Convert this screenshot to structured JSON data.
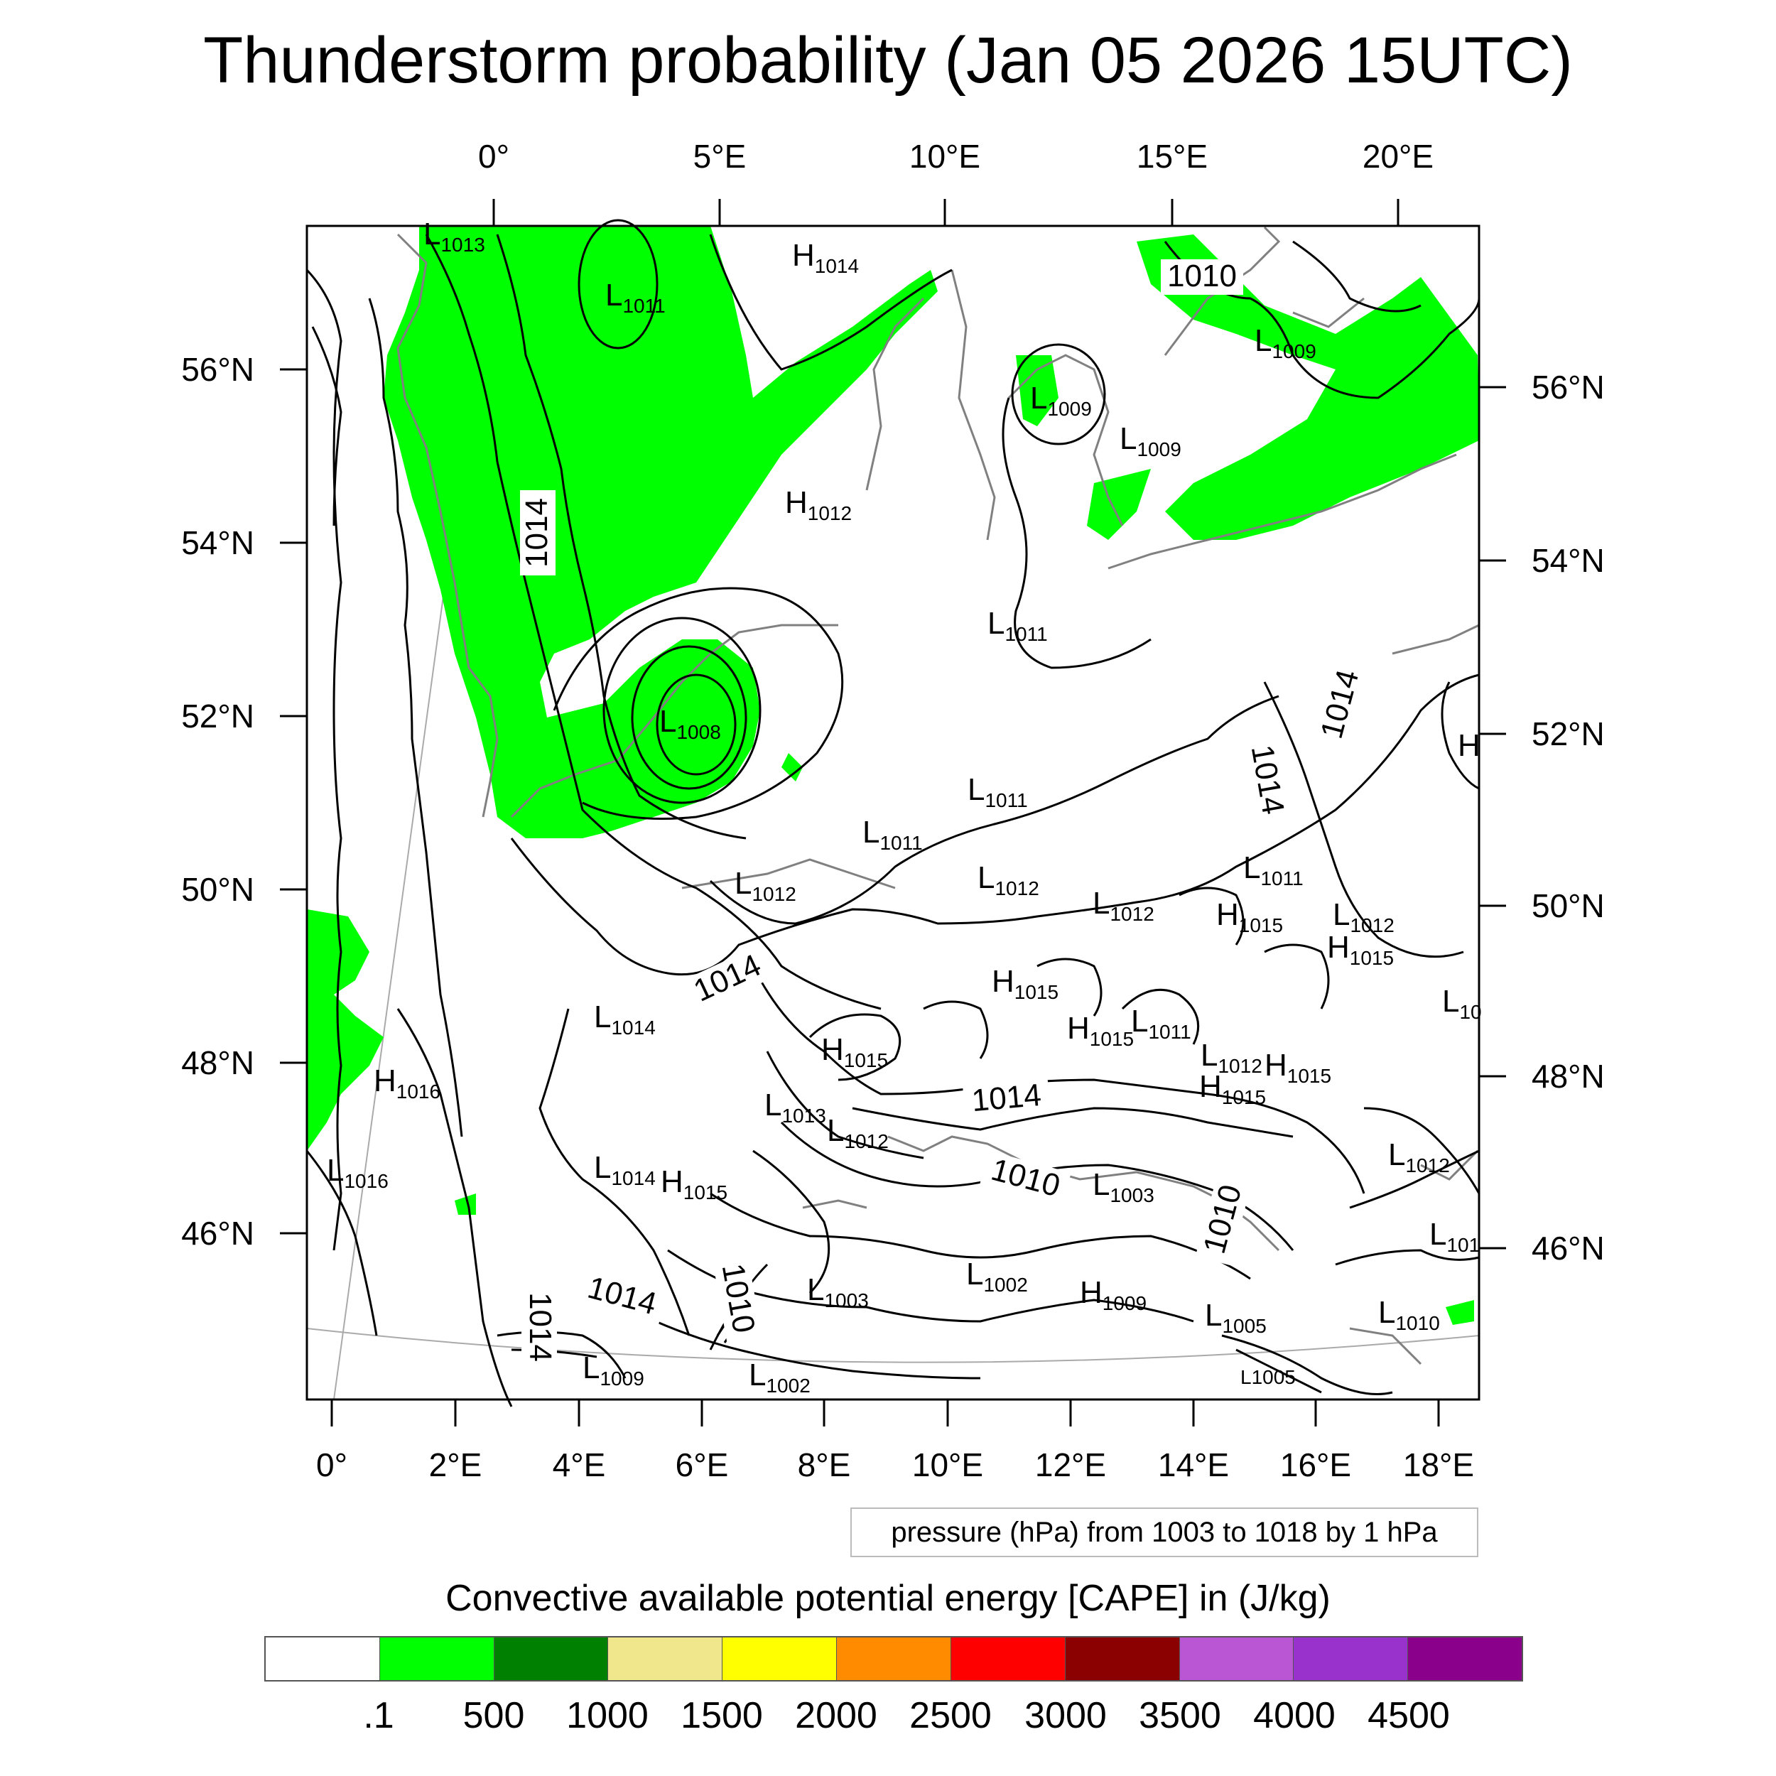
{
  "title": "Thunderstorm probability (Jan 05 2026 15UTC)",
  "axes": {
    "top_lon_ticks": [
      "0°",
      "5°E",
      "10°E",
      "15°E",
      "20°E"
    ],
    "bottom_lon_ticks": [
      "0°",
      "2°E",
      "4°E",
      "6°E",
      "8°E",
      "10°E",
      "12°E",
      "14°E",
      "16°E",
      "18°E"
    ],
    "left_lat_ticks": [
      "56°N",
      "54°N",
      "52°N",
      "50°N",
      "48°N",
      "46°N"
    ],
    "right_lat_ticks": [
      "56°N",
      "54°N",
      "52°N",
      "50°N",
      "48°N",
      "46°N"
    ]
  },
  "pressure_centers": [
    {
      "type": "L",
      "value": "1013"
    },
    {
      "type": "L",
      "value": "1011"
    },
    {
      "type": "H",
      "value": "1014"
    },
    {
      "type": "L",
      "value": "1009"
    },
    {
      "type": "L",
      "value": "1009"
    },
    {
      "type": "L",
      "value": "1009"
    },
    {
      "type": "H",
      "value": "1012"
    },
    {
      "type": "L",
      "value": "1011"
    },
    {
      "type": "L",
      "value": "1008"
    },
    {
      "type": "L",
      "value": "1011"
    },
    {
      "type": "L",
      "value": "1011"
    },
    {
      "type": "L",
      "value": "1012"
    },
    {
      "type": "L",
      "value": "1012"
    },
    {
      "type": "L",
      "value": "1012"
    },
    {
      "type": "L",
      "value": "1011"
    },
    {
      "type": "H",
      "value": "1015"
    },
    {
      "type": "L",
      "value": "1012"
    },
    {
      "type": "H",
      "value": "1015"
    },
    {
      "type": "H",
      "value": "1015"
    },
    {
      "type": "L",
      "value": "1014"
    },
    {
      "type": "H",
      "value": "1015"
    },
    {
      "type": "L",
      "value": "1011"
    },
    {
      "type": "L",
      "value": "1012"
    },
    {
      "type": "H",
      "value": "1015"
    },
    {
      "type": "H",
      "value": "1016"
    },
    {
      "type": "H",
      "value": "1015"
    },
    {
      "type": "L",
      "value": "1013"
    },
    {
      "type": "H",
      "value": "1015"
    },
    {
      "type": "L",
      "value": "1012"
    },
    {
      "type": "L",
      "value": "1016"
    },
    {
      "type": "L",
      "value": "1014"
    },
    {
      "type": "H",
      "value": "1015"
    },
    {
      "type": "L",
      "value": "1003"
    },
    {
      "type": "L",
      "value": "1003"
    },
    {
      "type": "L",
      "value": "1002"
    },
    {
      "type": "H",
      "value": "1009"
    },
    {
      "type": "L",
      "value": "1005"
    },
    {
      "type": "L",
      "value": "1010"
    },
    {
      "type": "L",
      "value": "1009"
    },
    {
      "type": "L",
      "value": "1002"
    },
    {
      "type": "L",
      "value": "1005"
    },
    {
      "type": "L",
      "value": "1012"
    },
    {
      "type": "L",
      "value": "101"
    },
    {
      "type": "L",
      "value": "10"
    },
    {
      "type": "H",
      "value": ""
    }
  ],
  "isobar_labels": [
    "1010",
    "1014",
    "1014",
    "1014",
    "1014",
    "1014",
    "1010",
    "1010",
    "1014",
    "1014",
    "1010"
  ],
  "caption": "pressure (hPa) from 1003 to 1018 by 1 hPa",
  "colorbar": {
    "title": "Convective available potential energy [CAPE] in (J/kg)",
    "colors": [
      "#ffffff",
      "#00ff00",
      "#008000",
      "#f0e68c",
      "#ffff00",
      "#ff8c00",
      "#ff0000",
      "#8b0000",
      "#ba55d3",
      "#9932cc",
      "#8b008b"
    ],
    "labels": [
      ".1",
      "500",
      "1000",
      "1500",
      "2000",
      "2500",
      "3000",
      "3500",
      "4000",
      "4500"
    ]
  }
}
